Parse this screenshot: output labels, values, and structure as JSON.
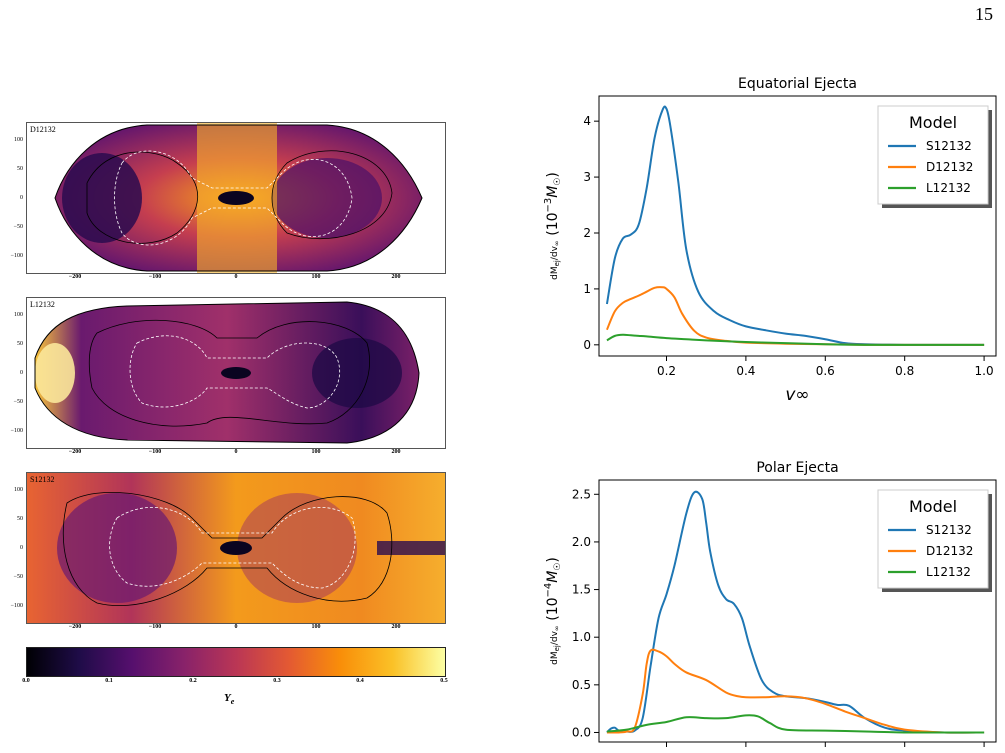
{
  "page_number": "15",
  "maps": {
    "panels": [
      {
        "label": "D12132",
        "y_ticks": [
          "100",
          "50",
          "0",
          "−50",
          "−100"
        ],
        "x_ticks": [
          "−200",
          "−100",
          "0",
          "100",
          "200"
        ]
      },
      {
        "label": "L12132",
        "y_ticks": [
          "100",
          "50",
          "0",
          "−50",
          "−100"
        ],
        "x_ticks": [
          "−200",
          "−100",
          "0",
          "100",
          "200"
        ]
      },
      {
        "label": "S12132",
        "y_ticks": [
          "100",
          "50",
          "0",
          "−50",
          "−100"
        ],
        "x_ticks": [
          "−200",
          "−100",
          "0",
          "100",
          "200"
        ]
      }
    ],
    "colorbar": {
      "ticks": [
        "0.0",
        "0.1",
        "0.2",
        "0.3",
        "0.4",
        "0.5"
      ],
      "label": "Y_e",
      "colormap": [
        "#000004",
        "#1f0c48",
        "#550f6d",
        "#88226a",
        "#ba3655",
        "#e35933",
        "#f98e09",
        "#fac127",
        "#fcffa4"
      ]
    }
  },
  "chart_data": [
    {
      "type": "line",
      "title": "Equatorial Ejecta",
      "xlabel": "v∞",
      "ylabel": "dMej/dv∞ (10⁻³M☉)",
      "ylabel_parts": {
        "num": "dM",
        "num_sub": "ej",
        "den": "dv",
        "den_sub": "∞",
        "unit_a": "(10",
        "unit_exp": "−3",
        "unit_b": "M",
        "unit_sub": "☉",
        "unit_c": ")"
      },
      "xlim": [
        0.03,
        1.03
      ],
      "ylim": [
        -0.2,
        4.45
      ],
      "x_ticks": [
        0.2,
        0.4,
        0.6,
        0.8,
        1.0
      ],
      "x_tick_labels": [
        "0.2",
        "0.4",
        "0.6",
        "0.8",
        "1.0"
      ],
      "y_ticks": [
        0,
        1,
        2,
        3,
        4
      ],
      "y_tick_labels": [
        "0",
        "1",
        "2",
        "3",
        "4"
      ],
      "legend": {
        "title": "Model",
        "position": "top-right"
      },
      "series": [
        {
          "name": "S12132",
          "color": "#1f77b4",
          "x": [
            0.05,
            0.07,
            0.09,
            0.11,
            0.13,
            0.15,
            0.17,
            0.19,
            0.2,
            0.21,
            0.23,
            0.25,
            0.28,
            0.32,
            0.36,
            0.4,
            0.45,
            0.5,
            0.55,
            0.6,
            0.65,
            0.7,
            0.8,
            0.9,
            1.0
          ],
          "y": [
            0.73,
            1.55,
            1.9,
            1.97,
            2.15,
            2.8,
            3.7,
            4.2,
            4.22,
            3.9,
            2.9,
            1.7,
            0.95,
            0.6,
            0.44,
            0.33,
            0.26,
            0.2,
            0.16,
            0.1,
            0.03,
            0.01,
            0.0,
            0.0,
            0.0
          ]
        },
        {
          "name": "D12132",
          "color": "#ff7f0e",
          "x": [
            0.05,
            0.07,
            0.09,
            0.11,
            0.13,
            0.15,
            0.17,
            0.19,
            0.2,
            0.22,
            0.24,
            0.27,
            0.3,
            0.35,
            0.4,
            0.5,
            0.6,
            0.7,
            0.8,
            0.9,
            1.0
          ],
          "y": [
            0.27,
            0.6,
            0.75,
            0.82,
            0.88,
            0.95,
            1.02,
            1.03,
            1.0,
            0.85,
            0.55,
            0.25,
            0.13,
            0.07,
            0.04,
            0.02,
            0.01,
            0.0,
            0.0,
            0.0,
            0.0
          ]
        },
        {
          "name": "L12132",
          "color": "#2ca02c",
          "x": [
            0.05,
            0.07,
            0.09,
            0.11,
            0.13,
            0.15,
            0.2,
            0.25,
            0.3,
            0.4,
            0.5,
            0.6,
            0.7,
            0.8,
            0.9,
            1.0
          ],
          "y": [
            0.08,
            0.16,
            0.18,
            0.17,
            0.16,
            0.15,
            0.12,
            0.1,
            0.08,
            0.05,
            0.03,
            0.01,
            0.0,
            0.0,
            0.0,
            0.0
          ]
        }
      ]
    },
    {
      "type": "line",
      "title": "Polar Ejecta",
      "xlabel": "",
      "ylabel": "dMej/dv∞ (10⁻⁴M☉)",
      "ylabel_parts": {
        "num": "dM",
        "num_sub": "ej",
        "den": "dv",
        "den_sub": "∞",
        "unit_a": "(10",
        "unit_exp": "−4",
        "unit_b": "M",
        "unit_sub": "☉",
        "unit_c": ")"
      },
      "xlim": [
        0.03,
        1.03
      ],
      "ylim": [
        -0.1,
        2.65
      ],
      "x_ticks": [
        0.2,
        0.4,
        0.6,
        0.8,
        1.0
      ],
      "x_tick_labels": [
        "",
        "",
        "",
        "",
        ""
      ],
      "y_ticks": [
        0.0,
        0.5,
        1.0,
        1.5,
        2.0,
        2.5
      ],
      "y_tick_labels": [
        "0.0",
        "0.5",
        "1.0",
        "1.5",
        "2.0",
        "2.5"
      ],
      "legend": {
        "title": "Model",
        "position": "top-right"
      },
      "series": [
        {
          "name": "S12132",
          "color": "#1f77b4",
          "x": [
            0.05,
            0.06,
            0.07,
            0.08,
            0.1,
            0.12,
            0.14,
            0.16,
            0.18,
            0.2,
            0.22,
            0.25,
            0.27,
            0.29,
            0.3,
            0.31,
            0.33,
            0.35,
            0.37,
            0.39,
            0.41,
            0.44,
            0.47,
            0.5,
            0.55,
            0.6,
            0.63,
            0.66,
            0.7,
            0.75,
            0.8,
            0.9,
            1.0
          ],
          "y": [
            0.0,
            0.04,
            0.05,
            0.02,
            0.01,
            0.02,
            0.15,
            0.7,
            1.2,
            1.45,
            1.75,
            2.3,
            2.52,
            2.45,
            2.2,
            1.9,
            1.55,
            1.4,
            1.35,
            1.2,
            0.9,
            0.55,
            0.42,
            0.38,
            0.36,
            0.32,
            0.29,
            0.28,
            0.15,
            0.05,
            0.02,
            0.0,
            0.0
          ]
        },
        {
          "name": "D12132",
          "color": "#ff7f0e",
          "x": [
            0.05,
            0.08,
            0.1,
            0.12,
            0.14,
            0.15,
            0.16,
            0.18,
            0.2,
            0.22,
            0.25,
            0.3,
            0.35,
            0.38,
            0.4,
            0.45,
            0.5,
            0.55,
            0.6,
            0.65,
            0.7,
            0.75,
            0.8,
            0.9,
            1.0
          ],
          "y": [
            0.0,
            0.0,
            0.01,
            0.05,
            0.4,
            0.72,
            0.86,
            0.85,
            0.8,
            0.72,
            0.63,
            0.55,
            0.42,
            0.38,
            0.37,
            0.37,
            0.38,
            0.36,
            0.3,
            0.22,
            0.15,
            0.08,
            0.03,
            0.0,
            0.0
          ]
        },
        {
          "name": "L12132",
          "color": "#2ca02c",
          "x": [
            0.05,
            0.1,
            0.15,
            0.2,
            0.25,
            0.3,
            0.35,
            0.4,
            0.43,
            0.46,
            0.5,
            0.6,
            0.7,
            0.8,
            0.9,
            1.0
          ],
          "y": [
            0.01,
            0.03,
            0.08,
            0.11,
            0.16,
            0.15,
            0.15,
            0.18,
            0.17,
            0.1,
            0.03,
            0.02,
            0.01,
            0.0,
            0.0,
            0.0
          ]
        }
      ]
    }
  ]
}
